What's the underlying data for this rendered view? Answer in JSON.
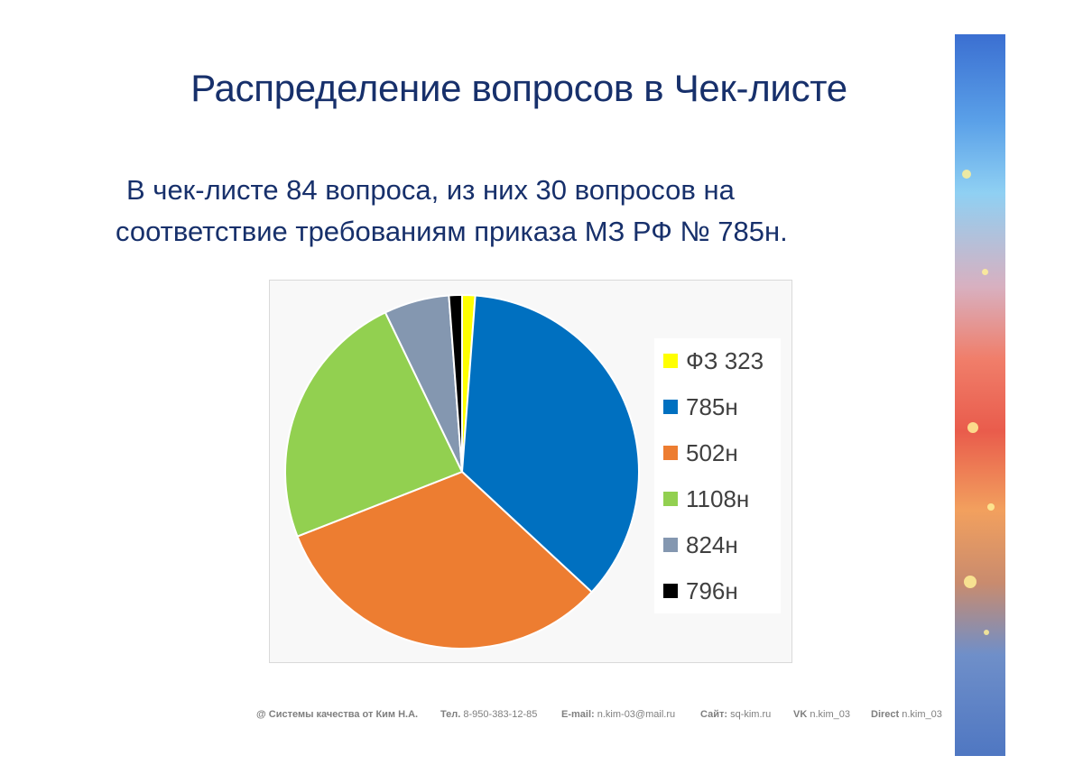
{
  "title": "Распределение вопросов в Чек-листе",
  "subtitle": {
    "line1": "В чек-листе 84 вопроса, из них 30 вопросов на",
    "line2": "соответствие требованиям приказа МЗ РФ № 785н."
  },
  "chart_data": {
    "type": "pie",
    "categories": [
      "ФЗ 323",
      "785н",
      "502н",
      "1108н",
      "824н",
      "796н"
    ],
    "values": [
      1,
      30,
      27,
      20,
      5,
      1
    ],
    "colors": [
      "#ffff00",
      "#0070c0",
      "#ed7d31",
      "#92d050",
      "#8497b0",
      "#000000"
    ],
    "legend_position": "right",
    "start_angle_deg": 0
  },
  "footer": {
    "org": "@ Системы качества от Ким Н.А.",
    "phone_label": "Тел.",
    "phone": "8-950-383-12-85",
    "email_label": "E-mail:",
    "email": "n.kim-03@mail.ru",
    "site_label": "Сайт:",
    "site": "sq-kim.ru",
    "vk_label": "VK",
    "vk": "n.kim_03",
    "direct_label": "Direct",
    "direct": "n.kim_03"
  },
  "decor": {
    "side_image_icon": "abstract-light-image"
  }
}
